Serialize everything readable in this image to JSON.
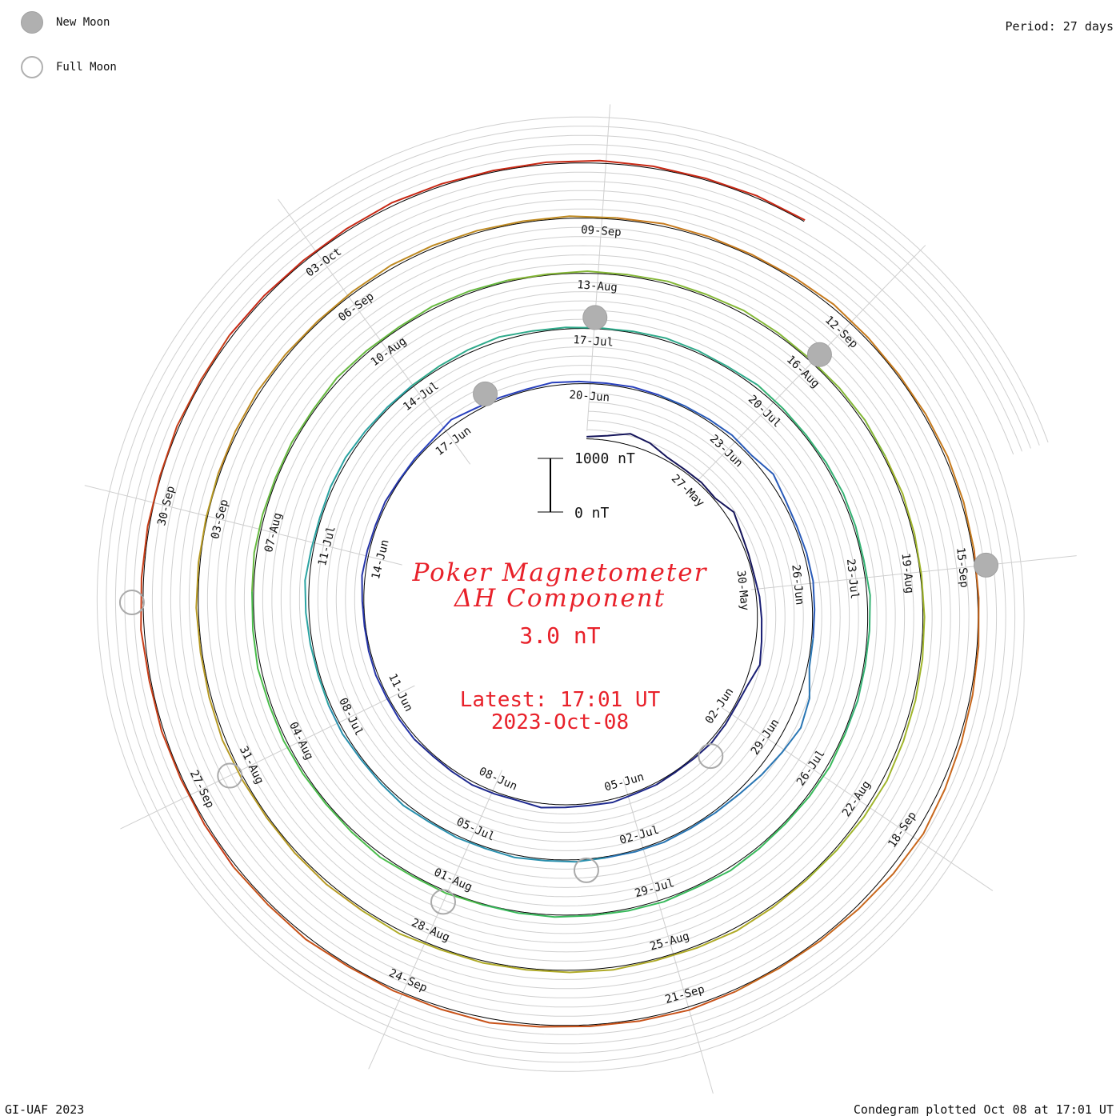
{
  "header": {
    "period": "Period: 27 days"
  },
  "legend": {
    "new_moon": "New Moon",
    "full_moon": "Full Moon"
  },
  "title": {
    "line1": "Poker Magnetometer",
    "line2": "ΔH Component",
    "value": "3.0 nT",
    "latest_time": "Latest: 17:01 UT",
    "latest_date": "2023-Oct-08"
  },
  "scale_bar": {
    "top_label": "1000 nT",
    "bottom_label": "0 nT"
  },
  "footer": {
    "credit": "GI-UAF 2023",
    "plotted": "Condegram plotted Oct 08 at 17:01 UT"
  },
  "colors": {
    "title": "#e8212a",
    "grid": "#c8c8c8",
    "baseline": "#000000",
    "moon_fill": "#b0b0b0"
  },
  "chart_data": {
    "type": "line",
    "subtype": "spiral condegram",
    "period_days": 27,
    "start_date": "24-May-2023",
    "end_date": "08-Oct-2023",
    "scale_nT": [
      0,
      1000
    ],
    "date_labels": [
      "27-May",
      "30-May",
      "02-Jun",
      "05-Jun",
      "08-Jun",
      "11-Jun",
      "14-Jun",
      "17-Jun",
      "20-Jun",
      "23-Jun",
      "26-Jun",
      "29-Jun",
      "02-Jul",
      "05-Jul",
      "08-Jul",
      "11-Jul",
      "14-Jul",
      "17-Jul",
      "20-Jul",
      "23-Jul",
      "26-Jul",
      "29-Jul",
      "01-Aug",
      "04-Aug",
      "07-Aug",
      "10-Aug",
      "13-Aug",
      "16-Aug",
      "19-Aug",
      "22-Aug",
      "25-Aug",
      "28-Aug",
      "31-Aug",
      "03-Sep",
      "06-Sep",
      "09-Sep",
      "12-Sep",
      "15-Sep",
      "18-Sep",
      "21-Sep",
      "24-Sep",
      "27-Sep",
      "30-Sep",
      "03-Oct"
    ],
    "new_moons": [
      "18-Jun",
      "17-Jul",
      "16-Aug",
      "15-Sep"
    ],
    "full_moons": [
      "03-Jun",
      "03-Jul",
      "01-Aug",
      "31-Aug",
      "29-Sep"
    ],
    "series": [
      {
        "values": [
          40,
          90,
          210,
          160,
          60,
          40,
          50,
          30,
          150,
          70,
          40,
          30,
          60,
          80,
          110,
          160,
          60,
          30,
          40,
          50,
          30,
          20,
          40,
          30,
          60,
          40,
          50,
          80,
          30,
          40,
          60,
          40,
          30,
          50,
          40,
          30,
          40,
          30,
          20,
          30,
          60,
          40,
          30,
          40,
          20,
          30,
          40,
          110,
          50,
          40,
          30,
          60,
          40,
          30,
          40,
          30,
          30,
          40,
          60,
          40,
          130,
          60,
          40,
          50,
          60,
          40,
          30,
          40,
          200,
          260,
          180,
          120,
          60,
          40,
          30,
          40,
          30,
          20,
          40,
          30,
          50,
          30,
          40,
          30,
          60,
          40,
          30,
          50,
          40,
          30,
          40,
          60,
          80,
          40,
          30,
          50,
          60,
          40,
          30,
          30,
          40,
          60,
          80,
          40,
          30,
          20,
          30,
          50,
          40,
          30,
          60,
          40,
          30,
          40,
          50,
          40,
          30,
          60,
          40,
          30,
          40,
          30,
          50,
          40,
          30,
          40,
          60,
          30,
          50,
          40,
          30,
          40,
          30,
          20,
          40,
          30,
          60,
          40,
          30,
          40,
          50,
          40,
          60,
          40,
          30,
          50,
          40,
          30,
          40,
          30,
          60,
          40,
          30,
          50,
          40,
          30,
          20,
          40,
          30,
          50,
          40,
          60,
          40,
          30,
          40,
          50,
          30,
          40,
          30,
          20,
          30,
          40,
          50,
          60,
          80,
          60,
          40,
          30,
          40,
          60,
          40,
          30,
          50,
          40,
          30,
          40,
          30,
          60,
          40,
          50,
          40,
          30,
          40,
          60,
          40,
          30,
          40,
          30,
          20,
          30,
          40,
          50,
          40,
          30,
          40,
          60,
          50,
          40,
          30,
          40,
          30,
          50,
          40,
          30,
          40,
          60,
          40,
          30,
          40,
          50,
          40,
          30,
          20,
          30,
          40,
          60,
          90,
          130,
          100,
          60,
          40,
          30,
          40,
          60,
          40,
          30,
          40,
          80,
          50,
          40,
          30,
          60,
          40,
          50,
          40,
          30,
          40,
          30,
          60,
          40,
          30,
          20,
          40,
          30,
          50,
          40,
          30,
          40,
          60,
          40,
          30,
          40,
          50,
          40,
          30,
          40,
          30
        ]
      }
    ]
  }
}
